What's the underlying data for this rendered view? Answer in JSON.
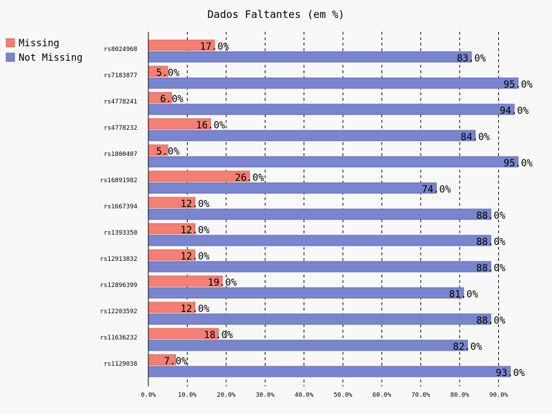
{
  "chart_data": {
    "type": "bar",
    "orientation": "horizontal",
    "title": "Dados Faltantes (em %)",
    "xlabel": "",
    "ylabel": "",
    "xlim": [
      0,
      95
    ],
    "x_ticks": [
      "0.0%",
      "10.0%",
      "20.0%",
      "30.0%",
      "40.0%",
      "50.0%",
      "60.0%",
      "70.0%",
      "80.0%",
      "90.0%"
    ],
    "x_tick_values": [
      0,
      10,
      20,
      30,
      40,
      50,
      60,
      70,
      80,
      90
    ],
    "grid": "vertical dashed",
    "legend_position": "top-left",
    "categories": [
      "rs8024968",
      "rs7183877",
      "rs4778241",
      "rs4778232",
      "rs1800407",
      "rs16891982",
      "rs1667394",
      "rs1393350",
      "rs12913832",
      "rs12896399",
      "rs12203592",
      "rs11636232",
      "rs1129038"
    ],
    "series": [
      {
        "name": "Missing",
        "color": "#f47f72",
        "values": [
          17.0,
          5.0,
          6.0,
          16.0,
          5.0,
          26.0,
          12.0,
          12.0,
          12.0,
          19.0,
          12.0,
          18.0,
          7.0
        ],
        "labels": [
          "17.0%",
          "5.0%",
          "6.0%",
          "16.0%",
          "5.0%",
          "26.0%",
          "12.0%",
          "12.0%",
          "12.0%",
          "19.0%",
          "12.0%",
          "18.0%",
          "7.0%"
        ]
      },
      {
        "name": "Not Missing",
        "color": "#7a85cf",
        "values": [
          83.0,
          95.0,
          94.0,
          84.0,
          95.0,
          74.0,
          88.0,
          88.0,
          88.0,
          81.0,
          88.0,
          82.0,
          93.0
        ],
        "labels": [
          "83.0%",
          "95.0%",
          "94.0%",
          "84.0%",
          "95.0%",
          "74.0%",
          "88.0%",
          "88.0%",
          "88.0%",
          "81.0%",
          "88.0%",
          "82.0%",
          "93.0%"
        ]
      }
    ]
  }
}
